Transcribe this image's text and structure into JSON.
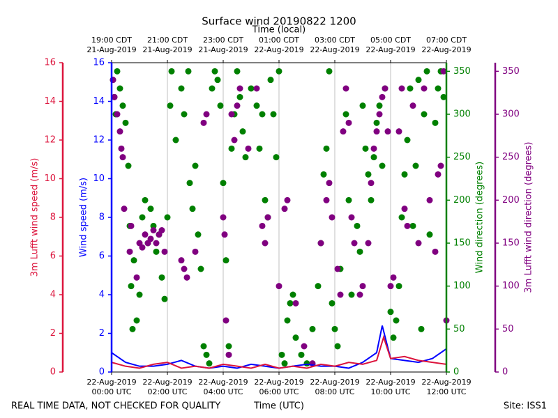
{
  "chart_data": {
    "type": "line",
    "title": "Surface wind 20190822 1200",
    "xlabel": "Time (UTC)",
    "xlabel_top": "Time (local)",
    "footer_left": "REAL TIME DATA, NOT CHECKED FOR QUALITY",
    "footer_right": "Site: ISS1",
    "grid": true,
    "xlim": [
      0,
      12
    ],
    "xticks": [
      {
        "value": 0,
        "label": "22-Aug-2019\n00:00 UTC"
      },
      {
        "value": 2,
        "label": "22-Aug-2019\n02:00 UTC"
      },
      {
        "value": 4,
        "label": "22-Aug-2019\n04:00 UTC"
      },
      {
        "value": 6,
        "label": "22-Aug-2019\n06:00 UTC"
      },
      {
        "value": 8,
        "label": "22-Aug-2019\n08:00 UTC"
      },
      {
        "value": 10,
        "label": "22-Aug-2019\n10:00 UTC"
      },
      {
        "value": 12,
        "label": "22-Aug-2019\n12:00 UTC"
      }
    ],
    "xticks_top": [
      {
        "value": 0,
        "label": "19:00 CDT\n21-Aug-2019"
      },
      {
        "value": 2,
        "label": "21:00 CDT\n21-Aug-2019"
      },
      {
        "value": 4,
        "label": "23:00 CDT\n21-Aug-2019"
      },
      {
        "value": 6,
        "label": "01:00 CDT\n22-Aug-2019"
      },
      {
        "value": 8,
        "label": "03:00 CDT\n22-Aug-2019"
      },
      {
        "value": 10,
        "label": "05:00 CDT\n22-Aug-2019"
      },
      {
        "value": 12,
        "label": "07:00 CDT\n22-Aug-2019"
      }
    ],
    "axes": [
      {
        "label": "3m Lufft wind speed (m/s)",
        "color": "#dc143c",
        "lim": [
          0,
          16
        ],
        "ticks": [
          0,
          2,
          4,
          6,
          8,
          10,
          12,
          14,
          16
        ]
      },
      {
        "label": "Wind speed (m/s)",
        "color": "#0000ff",
        "lim": [
          0,
          16
        ],
        "ticks": [
          0,
          2,
          4,
          6,
          8,
          10,
          12,
          14,
          16
        ]
      },
      {
        "label": "Wind direction (degrees)",
        "color": "#008000",
        "lim": [
          0,
          360
        ],
        "ticks": [
          0,
          50,
          100,
          150,
          200,
          250,
          300,
          350
        ]
      },
      {
        "label": "3m Lufft wind direction (degrees)",
        "color": "#800080",
        "lim": [
          0,
          360
        ],
        "ticks": [
          0,
          50,
          100,
          150,
          200,
          250,
          300,
          350
        ]
      }
    ],
    "series": [
      {
        "type": "scatter",
        "axis": 2,
        "color": "#008000",
        "x": [
          0.05,
          0.1,
          0.15,
          0.2,
          0.3,
          0.4,
          0.5,
          0.6,
          0.65,
          0.7,
          0.75,
          0.8,
          0.9,
          1.0,
          1.1,
          1.2,
          1.3,
          1.4,
          1.5,
          1.6,
          1.7,
          1.8,
          1.9,
          2.0,
          2.1,
          2.15,
          2.3,
          2.5,
          2.6,
          2.75,
          2.8,
          2.9,
          3.0,
          3.1,
          3.2,
          3.3,
          3.4,
          3.5,
          3.6,
          3.7,
          3.8,
          3.9,
          4.0,
          4.1,
          4.2,
          4.3,
          4.4,
          4.5,
          4.6,
          4.7,
          4.8,
          5.0,
          5.2,
          5.3,
          5.4,
          5.5,
          5.6,
          5.7,
          5.8,
          5.9,
          6.0,
          6.1,
          6.2,
          6.3,
          6.4,
          6.5,
          6.6,
          6.8,
          7.0,
          7.2,
          7.4,
          7.5,
          7.6,
          7.7,
          7.8,
          7.9,
          8.0,
          8.1,
          8.2,
          8.4,
          8.5,
          8.6,
          8.8,
          8.9,
          9.0,
          9.1,
          9.2,
          9.3,
          9.4,
          9.5,
          9.6,
          9.7,
          9.8,
          10.0,
          10.1,
          10.2,
          10.3,
          10.4,
          10.5,
          10.6,
          10.7,
          10.8,
          10.9,
          11.0,
          11.1,
          11.2,
          11.3,
          11.4,
          11.6,
          11.7,
          11.8,
          11.9
        ],
        "values": [
          340,
          320,
          300,
          350,
          330,
          310,
          290,
          240,
          170,
          100,
          50,
          130,
          60,
          90,
          180,
          200,
          150,
          190,
          170,
          140,
          160,
          110,
          85,
          180,
          310,
          350,
          270,
          330,
          300,
          350,
          220,
          190,
          240,
          160,
          120,
          30,
          20,
          10,
          330,
          350,
          340,
          310,
          220,
          130,
          30,
          260,
          300,
          350,
          320,
          280,
          250,
          330,
          310,
          260,
          300,
          200,
          180,
          340,
          300,
          250,
          350,
          20,
          10,
          60,
          80,
          90,
          40,
          20,
          10,
          50,
          100,
          150,
          230,
          260,
          350,
          80,
          50,
          30,
          120,
          300,
          200,
          90,
          170,
          140,
          310,
          260,
          230,
          200,
          250,
          290,
          310,
          240,
          330,
          70,
          40,
          60,
          100,
          180,
          230,
          270,
          330,
          170,
          240,
          340,
          50,
          300,
          350,
          160,
          290,
          330,
          350,
          320
        ]
      },
      {
        "type": "scatter",
        "axis": 3,
        "color": "#800080",
        "x": [
          0.05,
          0.1,
          0.2,
          0.3,
          0.35,
          0.4,
          0.45,
          0.65,
          0.7,
          0.9,
          1.0,
          1.1,
          1.2,
          1.3,
          1.4,
          1.5,
          1.6,
          1.7,
          1.8,
          1.9,
          2.5,
          2.6,
          2.7,
          3.0,
          3.3,
          3.4,
          4.0,
          4.05,
          4.1,
          4.2,
          4.3,
          4.4,
          4.5,
          4.6,
          4.9,
          5.2,
          5.4,
          5.5,
          5.6,
          6.0,
          6.2,
          6.3,
          6.6,
          6.9,
          7.2,
          7.5,
          7.7,
          7.8,
          7.9,
          8.1,
          8.2,
          8.3,
          8.4,
          8.5,
          8.6,
          8.7,
          8.9,
          9.0,
          9.2,
          9.3,
          9.4,
          9.5,
          9.6,
          9.7,
          9.8,
          9.9,
          10.0,
          10.1,
          10.3,
          10.4,
          10.5,
          10.6,
          10.8,
          11.0,
          11.2,
          11.4,
          11.6,
          11.7,
          11.8,
          11.9,
          12.0
        ],
        "values": [
          340,
          320,
          300,
          280,
          260,
          250,
          190,
          140,
          170,
          110,
          150,
          145,
          160,
          150,
          155,
          165,
          150,
          160,
          165,
          140,
          130,
          120,
          110,
          140,
          290,
          300,
          180,
          160,
          60,
          20,
          300,
          270,
          310,
          330,
          260,
          330,
          170,
          150,
          180,
          100,
          190,
          200,
          80,
          30,
          10,
          150,
          200,
          220,
          180,
          120,
          90,
          280,
          330,
          290,
          180,
          150,
          90,
          100,
          150,
          220,
          260,
          280,
          300,
          320,
          330,
          280,
          100,
          110,
          280,
          330,
          190,
          170,
          310,
          150,
          330,
          200,
          140,
          230,
          240,
          350,
          60
        ]
      },
      {
        "type": "line",
        "axis": 1,
        "color": "#0000ff",
        "x": [
          0,
          0.5,
          1,
          1.5,
          2,
          2.5,
          3,
          3.5,
          4,
          4.5,
          5,
          5.5,
          6,
          6.5,
          7,
          7.5,
          8,
          8.5,
          9,
          9.5,
          9.7,
          10,
          10.5,
          11,
          11.5,
          12
        ],
        "values": [
          1.0,
          0.5,
          0.3,
          0.3,
          0.4,
          0.6,
          0.3,
          0.2,
          0.3,
          0.2,
          0.4,
          0.3,
          0.2,
          0.3,
          0.4,
          0.3,
          0.3,
          0.2,
          0.5,
          1.0,
          2.4,
          0.7,
          0.6,
          0.5,
          0.7,
          1.2
        ]
      },
      {
        "type": "line",
        "axis": 0,
        "color": "#dc143c",
        "x": [
          0,
          0.5,
          1,
          1.5,
          2,
          2.5,
          3,
          3.5,
          4,
          4.5,
          5,
          5.5,
          6,
          6.5,
          7,
          7.5,
          8,
          8.5,
          9,
          9.5,
          9.75,
          10,
          10.5,
          11,
          11.5,
          12
        ],
        "values": [
          0.5,
          0.3,
          0.2,
          0.4,
          0.5,
          0.2,
          0.3,
          0.2,
          0.4,
          0.3,
          0.2,
          0.4,
          0.2,
          0.3,
          0.2,
          0.4,
          0.3,
          0.5,
          0.4,
          0.6,
          1.8,
          0.7,
          0.8,
          0.6,
          0.5,
          0.4
        ]
      }
    ]
  }
}
